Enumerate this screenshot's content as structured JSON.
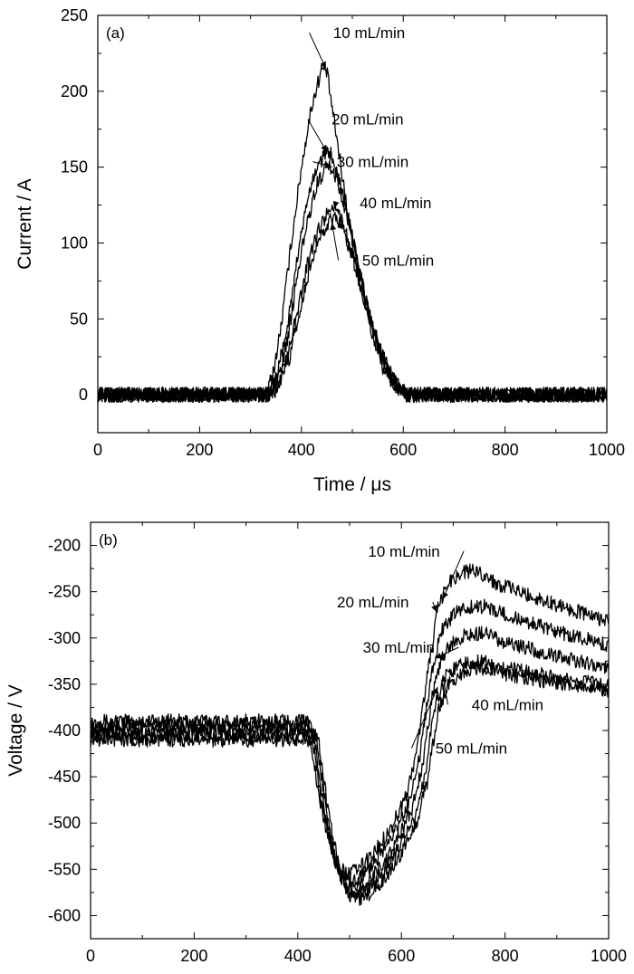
{
  "chart_data": [
    {
      "type": "line",
      "panel_label": "(a)",
      "xlabel": "Time / μs",
      "ylabel": "Current / A",
      "xlim": [
        0,
        1000
      ],
      "ylim": [
        -25,
        250
      ],
      "xticks": [
        0,
        200,
        400,
        600,
        800,
        1000
      ],
      "yticks": [
        0,
        50,
        100,
        150,
        200,
        250
      ],
      "grid": false,
      "legend": "none",
      "noise_amplitude": 5,
      "series": [
        {
          "name": "10 mL/min",
          "points": [
            [
              0,
              0
            ],
            [
              330,
              0
            ],
            [
              345,
              15
            ],
            [
              360,
              45
            ],
            [
              380,
              100
            ],
            [
              400,
              150
            ],
            [
              420,
              190
            ],
            [
              440,
              215
            ],
            [
              450,
              213
            ],
            [
              460,
              190
            ],
            [
              480,
              145
            ],
            [
              500,
              100
            ],
            [
              520,
              65
            ],
            [
              540,
              38
            ],
            [
              560,
              18
            ],
            [
              580,
              7
            ],
            [
              600,
              0
            ],
            [
              1000,
              0
            ]
          ]
        },
        {
          "name": "20 mL/min",
          "points": [
            [
              0,
              0
            ],
            [
              335,
              0
            ],
            [
              350,
              12
            ],
            [
              370,
              40
            ],
            [
              390,
              85
            ],
            [
              410,
              125
            ],
            [
              430,
              150
            ],
            [
              450,
              160
            ],
            [
              460,
              158
            ],
            [
              470,
              148
            ],
            [
              490,
              120
            ],
            [
              510,
              88
            ],
            [
              530,
              58
            ],
            [
              550,
              32
            ],
            [
              570,
              14
            ],
            [
              590,
              5
            ],
            [
              605,
              0
            ],
            [
              1000,
              0
            ]
          ]
        },
        {
          "name": "30 mL/min",
          "points": [
            [
              0,
              0
            ],
            [
              337,
              0
            ],
            [
              352,
              10
            ],
            [
              372,
              35
            ],
            [
              392,
              78
            ],
            [
              412,
              115
            ],
            [
              432,
              140
            ],
            [
              450,
              150
            ],
            [
              460,
              148
            ],
            [
              472,
              140
            ],
            [
              492,
              115
            ],
            [
              512,
              85
            ],
            [
              532,
              55
            ],
            [
              552,
              30
            ],
            [
              572,
              13
            ],
            [
              592,
              4
            ],
            [
              607,
              0
            ],
            [
              1000,
              0
            ]
          ]
        },
        {
          "name": "40 mL/min",
          "points": [
            [
              0,
              0
            ],
            [
              340,
              0
            ],
            [
              355,
              8
            ],
            [
              375,
              28
            ],
            [
              395,
              60
            ],
            [
              415,
              90
            ],
            [
              435,
              110
            ],
            [
              455,
              122
            ],
            [
              465,
              123
            ],
            [
              478,
              115
            ],
            [
              498,
              95
            ],
            [
              518,
              72
            ],
            [
              538,
              48
            ],
            [
              558,
              27
            ],
            [
              578,
              12
            ],
            [
              598,
              4
            ],
            [
              610,
              0
            ],
            [
              1000,
              0
            ]
          ]
        },
        {
          "name": "50 mL/min",
          "points": [
            [
              0,
              0
            ],
            [
              342,
              0
            ],
            [
              357,
              7
            ],
            [
              377,
              25
            ],
            [
              397,
              55
            ],
            [
              417,
              85
            ],
            [
              437,
              105
            ],
            [
              457,
              115
            ],
            [
              468,
              117
            ],
            [
              480,
              110
            ],
            [
              500,
              90
            ],
            [
              520,
              68
            ],
            [
              540,
              45
            ],
            [
              560,
              25
            ],
            [
              580,
              11
            ],
            [
              600,
              3
            ],
            [
              612,
              0
            ],
            [
              1000,
              0
            ]
          ]
        }
      ]
    },
    {
      "type": "line",
      "panel_label": "(b)",
      "xlabel": "Time / μs",
      "ylabel": "Voltage / V",
      "xlim": [
        0,
        1000
      ],
      "ylim": [
        -625,
        -175
      ],
      "xticks": [
        0,
        200,
        400,
        600,
        800,
        1000
      ],
      "yticks": [
        -200,
        -250,
        -300,
        -350,
        -400,
        -450,
        -500,
        -550,
        -600
      ],
      "grid": false,
      "legend": "none",
      "noise_amplitude": 8,
      "series": [
        {
          "name": "10 mL/min",
          "points": [
            [
              0,
              -390
            ],
            [
              420,
              -390
            ],
            [
              440,
              -470
            ],
            [
              460,
              -520
            ],
            [
              480,
              -550
            ],
            [
              500,
              -555
            ],
            [
              520,
              -548
            ],
            [
              550,
              -530
            ],
            [
              580,
              -505
            ],
            [
              610,
              -470
            ],
            [
              630,
              -420
            ],
            [
              650,
              -340
            ],
            [
              670,
              -270
            ],
            [
              690,
              -240
            ],
            [
              720,
              -228
            ],
            [
              750,
              -228
            ],
            [
              780,
              -240
            ],
            [
              850,
              -255
            ],
            [
              1000,
              -282
            ]
          ]
        },
        {
          "name": "20 mL/min",
          "points": [
            [
              0,
              -395
            ],
            [
              425,
              -395
            ],
            [
              445,
              -475
            ],
            [
              465,
              -528
            ],
            [
              485,
              -558
            ],
            [
              505,
              -563
            ],
            [
              525,
              -556
            ],
            [
              555,
              -538
            ],
            [
              585,
              -512
            ],
            [
              615,
              -478
            ],
            [
              635,
              -430
            ],
            [
              655,
              -350
            ],
            [
              675,
              -295
            ],
            [
              700,
              -275
            ],
            [
              730,
              -266
            ],
            [
              760,
              -266
            ],
            [
              800,
              -275
            ],
            [
              870,
              -288
            ],
            [
              1000,
              -308
            ]
          ]
        },
        {
          "name": "30 mL/min",
          "points": [
            [
              0,
              -400
            ],
            [
              430,
              -400
            ],
            [
              450,
              -482
            ],
            [
              470,
              -537
            ],
            [
              490,
              -567
            ],
            [
              510,
              -572
            ],
            [
              530,
              -565
            ],
            [
              560,
              -547
            ],
            [
              590,
              -520
            ],
            [
              620,
              -485
            ],
            [
              640,
              -440
            ],
            [
              660,
              -362
            ],
            [
              680,
              -318
            ],
            [
              705,
              -302
            ],
            [
              735,
              -295
            ],
            [
              765,
              -296
            ],
            [
              800,
              -305
            ],
            [
              870,
              -315
            ],
            [
              1000,
              -333
            ]
          ]
        },
        {
          "name": "40 mL/min",
          "points": [
            [
              0,
              -405
            ],
            [
              435,
              -405
            ],
            [
              455,
              -488
            ],
            [
              475,
              -545
            ],
            [
              495,
              -575
            ],
            [
              515,
              -578
            ],
            [
              535,
              -571
            ],
            [
              565,
              -553
            ],
            [
              595,
              -527
            ],
            [
              625,
              -493
            ],
            [
              645,
              -450
            ],
            [
              665,
              -372
            ],
            [
              685,
              -342
            ],
            [
              710,
              -330
            ],
            [
              740,
              -325
            ],
            [
              770,
              -327
            ],
            [
              805,
              -333
            ],
            [
              870,
              -340
            ],
            [
              1000,
              -352
            ]
          ]
        },
        {
          "name": "50 mL/min",
          "points": [
            [
              0,
              -410
            ],
            [
              440,
              -410
            ],
            [
              460,
              -492
            ],
            [
              480,
              -550
            ],
            [
              500,
              -580
            ],
            [
              520,
              -583
            ],
            [
              540,
              -576
            ],
            [
              570,
              -558
            ],
            [
              600,
              -532
            ],
            [
              630,
              -498
            ],
            [
              650,
              -455
            ],
            [
              670,
              -380
            ],
            [
              690,
              -350
            ],
            [
              715,
              -338
            ],
            [
              745,
              -332
            ],
            [
              775,
              -334
            ],
            [
              810,
              -340
            ],
            [
              870,
              -346
            ],
            [
              1000,
              -356
            ]
          ]
        }
      ]
    }
  ],
  "annotations": [
    [
      {
        "text": "10 mL/min",
        "at": [
          448,
          215
        ],
        "label": [
          533,
          235
        ]
      },
      {
        "text": "20 mL/min",
        "at": [
          450,
          160
        ],
        "label": [
          530,
          178
        ]
      },
      {
        "text": "30 mL/min",
        "at": [
          460,
          150
        ],
        "label": [
          540,
          150
        ]
      },
      {
        "text": "40 mL/min",
        "at": [
          465,
          123
        ],
        "label": [
          585,
          123
        ]
      },
      {
        "text": "50 mL/min",
        "at": [
          460,
          113
        ],
        "label": [
          590,
          85
        ]
      }
    ],
    [
      {
        "text": "10 mL/min",
        "at": [
          680,
          -258
        ],
        "label": [
          605,
          -212
        ]
      },
      {
        "text": "20 mL/min",
        "at": [
          668,
          -272
        ],
        "label": [
          545,
          -267
        ]
      },
      {
        "text": "30 mL/min",
        "at": [
          665,
          -322
        ],
        "label": [
          595,
          -316
        ]
      },
      {
        "text": "40 mL/min",
        "at": [
          680,
          -340
        ],
        "label": [
          805,
          -378
        ]
      },
      {
        "text": "50 mL/min",
        "at": [
          670,
          -353
        ],
        "label": [
          735,
          -425
        ]
      }
    ]
  ]
}
